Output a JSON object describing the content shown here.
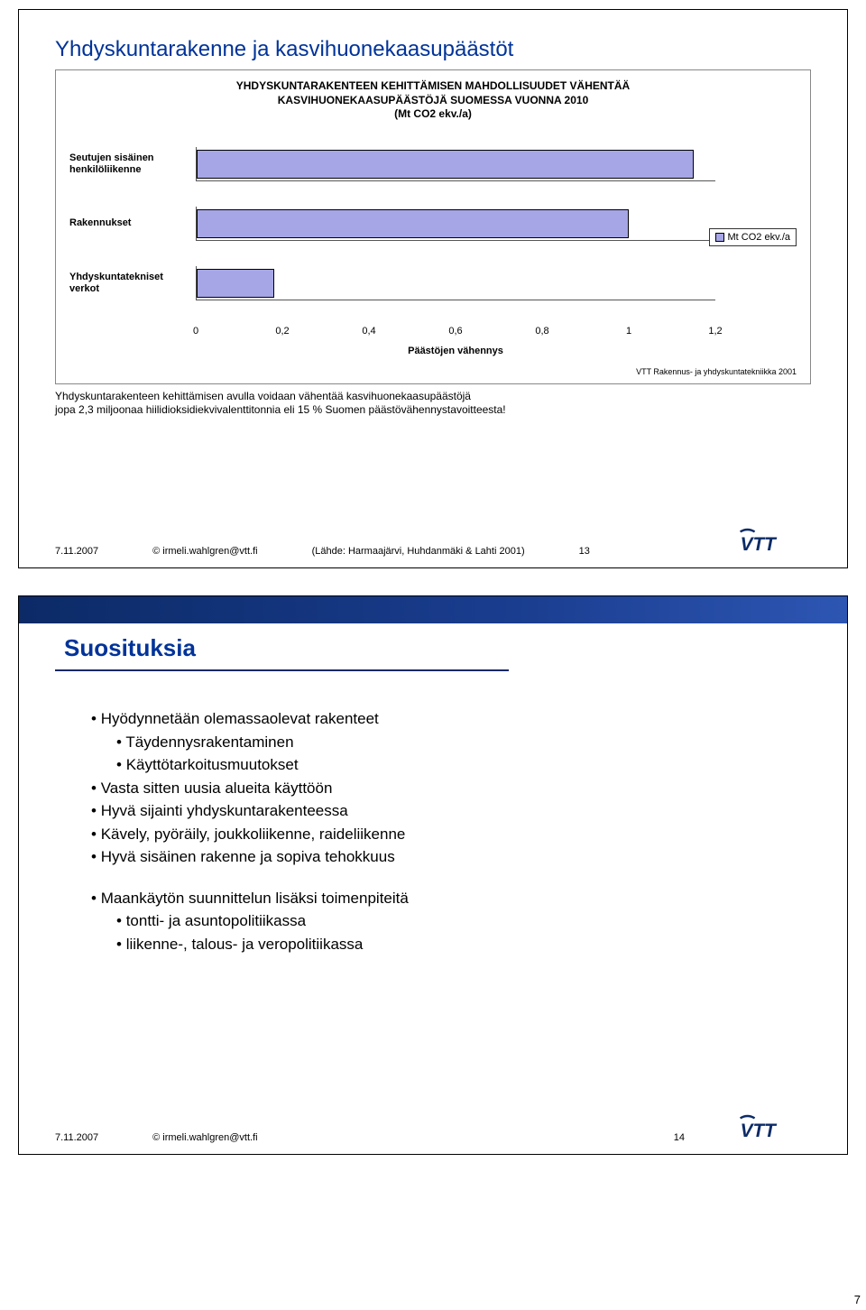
{
  "page_number": "7",
  "slide1": {
    "title": "Yhdyskuntarakenne ja kasvihuonekaasupäästöt",
    "chart": {
      "type": "bar",
      "header_l1": "YHDYSKUNTARAKENTEEN KEHITTÄMISEN MAHDOLLISUUDET VÄHENTÄÄ",
      "header_l2": "KASVIHUONEKAASUPÄÄSTÖJÄ SUOMESSA VUONNA 2010",
      "header_l3": "(Mt CO2 ekv./a)",
      "categories": [
        {
          "label": "Seutujen sisäinen henkilöliikenne",
          "value": 1.15
        },
        {
          "label": "Rakennukset",
          "value": 1.0
        },
        {
          "label": "Yhdyskuntatekniset verkot",
          "value": 0.18
        }
      ],
      "xlim_max": 1.2,
      "xticks": [
        "0",
        "0,2",
        "0,4",
        "0,6",
        "0,8",
        "1",
        "1,2"
      ],
      "x_axis_label": "Päästöjen vähennys",
      "legend_label": "Mt CO2 ekv./a",
      "bar_color": "#a6a6e6",
      "source": "VTT Rakennus- ja yhdyskuntatekniikka 2001"
    },
    "footnote_l1": "Yhdyskuntarakenteen kehittämisen avulla voidaan vähentää kasvihuonekaasupäästöjä",
    "footnote_l2": "jopa 2,3 miljoonaa hiilidioksidiekvivalenttitonnia eli 15 % Suomen päästövähennystavoitteesta!",
    "footer_date": "7.11.2007",
    "footer_email": "© irmeli.wahlgren@vtt.fi",
    "footer_source": "(Lähde: Harmaajärvi, Huhdanmäki & Lahti 2001)",
    "footer_page": "13"
  },
  "slide2": {
    "title": "Suosituksia",
    "bullets": [
      {
        "text": "Hyödynnetään olemassaolevat rakenteet",
        "sub": [
          "Täydennysrakentaminen",
          "Käyttötarkoitusmuutokset"
        ]
      },
      {
        "text": "Vasta sitten uusia alueita käyttöön"
      },
      {
        "text": "Hyvä sijainti yhdyskuntarakenteessa"
      },
      {
        "text": "Kävely, pyöräily, joukkoliikenne, raideliikenne"
      },
      {
        "text": "Hyvä sisäinen rakenne ja sopiva tehokkuus"
      }
    ],
    "bullets2": [
      {
        "text": "Maankäytön suunnittelun lisäksi toimenpiteitä",
        "sub": [
          "tontti- ja asuntopolitiikassa",
          "liikenne-, talous- ja veropolitiikassa"
        ]
      }
    ],
    "footer_date": "7.11.2007",
    "footer_email": "© irmeli.wahlgren@vtt.fi",
    "footer_page": "14"
  },
  "vtt_brand_color": "#0b2a66"
}
